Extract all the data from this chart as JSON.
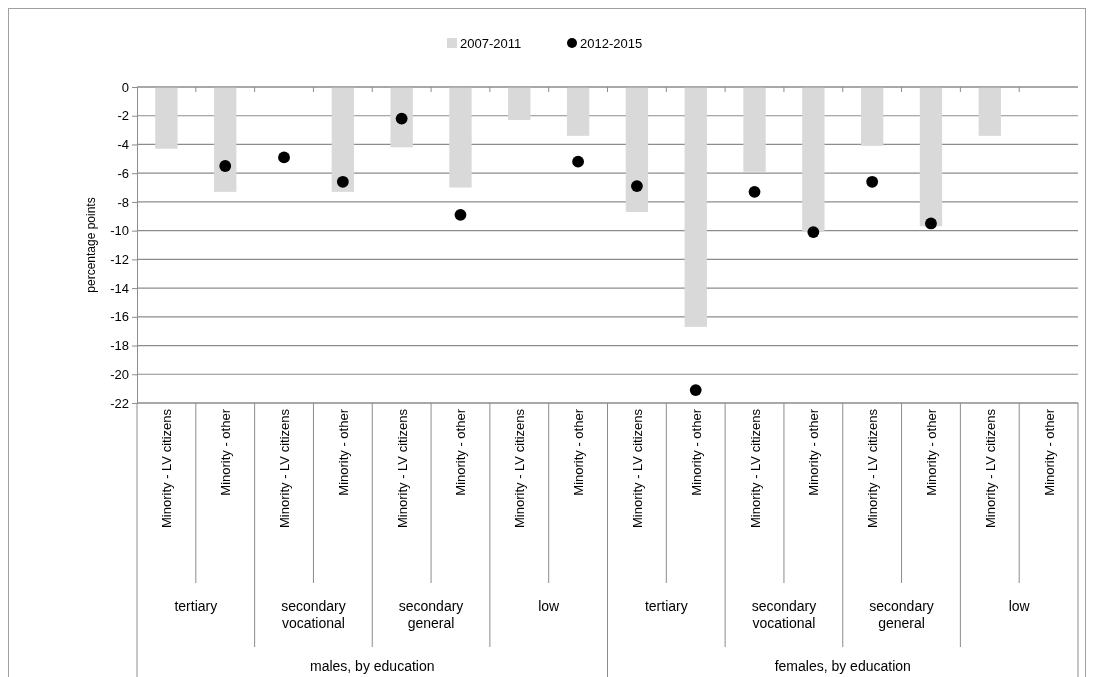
{
  "chart_data": {
    "type": "bar",
    "ylabel": "percentage points",
    "categories": [
      "Minority - LV citizens",
      "Minority - other",
      "Minority - LV citizens",
      "Minority - other",
      "Minority - LV citizens",
      "Minority - other",
      "Minority - LV citizens",
      "Minority - other",
      "Minority - LV citizens",
      "Minority - other",
      "Minority - LV citizens",
      "Minority - other",
      "Minority - LV citizens",
      "Minority - other",
      "Minority - LV citizens",
      "Minority - other"
    ],
    "series": [
      {
        "name": "2007-2011",
        "color": "#d9d9d9",
        "values": [
          -4.3,
          -7.3,
          null,
          -7.3,
          -4.2,
          -7.0,
          -2.3,
          -3.4,
          -8.7,
          -16.7,
          -5.9,
          -10.1,
          -4.1,
          -9.7,
          -3.4,
          null
        ]
      },
      {
        "name": "2012-2015",
        "type": "scatter",
        "color": "#000000",
        "values": [
          null,
          -5.5,
          -4.9,
          -6.6,
          -2.2,
          -8.9,
          null,
          -5.2,
          -6.9,
          -21.1,
          -7.3,
          -10.1,
          -6.6,
          -9.5,
          null,
          null
        ]
      }
    ],
    "ylim": [
      -22,
      0
    ],
    "yticks": [
      0,
      -2,
      -4,
      -6,
      -8,
      -10,
      -12,
      -14,
      -16,
      -18,
      -20,
      -22
    ],
    "grid": "y",
    "legend": "top",
    "marker": "circle",
    "annotations": [
      "tertiary",
      "secondary vocational",
      "secondary general",
      "low",
      "tertiary",
      "secondary vocational",
      "secondary general",
      "low",
      "males, by education",
      "females, by education"
    ]
  }
}
